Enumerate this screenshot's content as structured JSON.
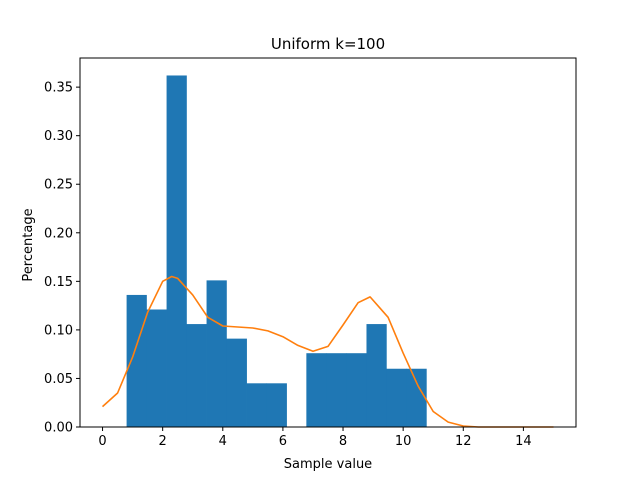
{
  "chart_data": {
    "type": "bar",
    "title": "Uniform k=100",
    "xlabel": "Sample value",
    "ylabel": "Percentage",
    "xlim": [
      -0.75,
      15.75
    ],
    "ylim": [
      0,
      0.38
    ],
    "xticks": [
      0,
      2,
      4,
      6,
      8,
      10,
      12,
      14
    ],
    "yticks": [
      0.0,
      0.05,
      0.1,
      0.15,
      0.2,
      0.25,
      0.3,
      0.35
    ],
    "ytick_labels": [
      "0.00",
      "0.05",
      "0.10",
      "0.15",
      "0.20",
      "0.25",
      "0.30",
      "0.35"
    ],
    "grid": false,
    "colors": {
      "bars": "#1f77b4",
      "density_line": "#ff7f0e"
    },
    "histogram": {
      "bin_edges": [
        0.8,
        1.46,
        2.13,
        2.79,
        3.46,
        4.12,
        4.79,
        5.45,
        6.12,
        6.78,
        7.45,
        8.11,
        8.78,
        9.44,
        10.11,
        10.77
      ],
      "values": [
        0.136,
        0.121,
        0.362,
        0.106,
        0.151,
        0.091,
        0.045,
        0.045,
        0.0,
        0.076,
        0.076,
        0.076,
        0.106,
        0.06,
        0.06
      ]
    },
    "density_line": {
      "x": [
        0,
        0.5,
        1,
        1.5,
        2,
        2.3,
        2.5,
        3,
        3.5,
        4,
        4.5,
        5,
        5.5,
        6,
        6.5,
        7,
        7.5,
        8,
        8.5,
        8.9,
        9.5,
        10,
        10.5,
        11,
        11.5,
        12,
        12.5,
        13,
        14,
        15
      ],
      "y": [
        0.021,
        0.035,
        0.072,
        0.118,
        0.15,
        0.155,
        0.153,
        0.136,
        0.113,
        0.104,
        0.103,
        0.102,
        0.099,
        0.093,
        0.084,
        0.078,
        0.083,
        0.105,
        0.128,
        0.134,
        0.113,
        0.076,
        0.042,
        0.016,
        0.005,
        0.001,
        0.0,
        0.0,
        0.0,
        0.0
      ]
    }
  }
}
